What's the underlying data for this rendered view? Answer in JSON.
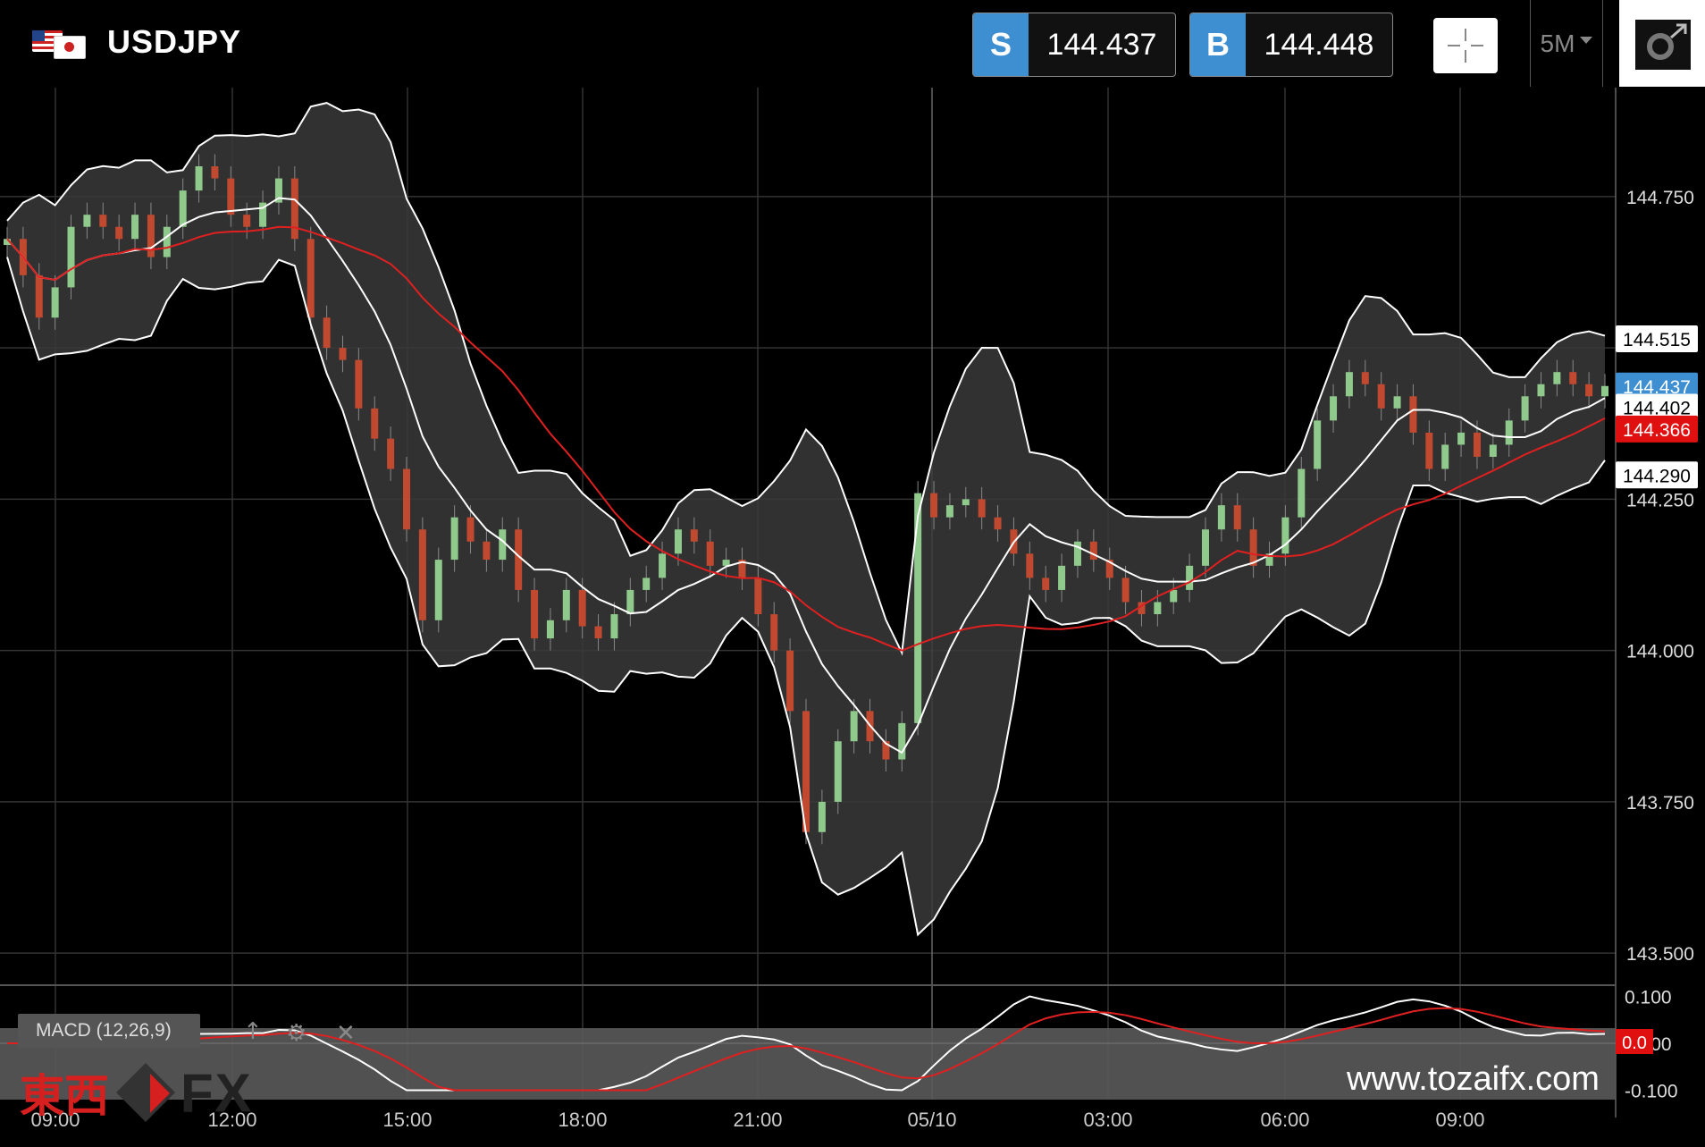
{
  "header": {
    "symbol": "USDJPY",
    "sell": {
      "tag": "S",
      "price": "144.437"
    },
    "buy": {
      "tag": "B",
      "price": "144.448"
    },
    "timeframe": "5M"
  },
  "watermark": {
    "brand_kanji": "東西",
    "brand_fx": "FX",
    "site": "www.tozaifx.com"
  },
  "colors": {
    "background": "#000000",
    "candle_up": "#8fc98c",
    "candle_down": "#c0492f",
    "bollinger": "#ffffff",
    "band_fill": "#3a3a3a",
    "ma": "#e02020",
    "accent": "#3d8fd1"
  },
  "chart_data": {
    "type": "candlestick",
    "interval": "5M",
    "indicators": [
      "Bollinger Bands",
      "Moving Average"
    ],
    "ylim": [
      143.5,
      144.75
    ],
    "yticks": [
      "144.750",
      "144.250",
      "144.000",
      "143.750",
      "143.500"
    ],
    "xticks": [
      "09:00",
      "12:00",
      "15:00",
      "18:00",
      "21:00",
      "05/10",
      "03:00",
      "06:00",
      "09:00"
    ],
    "price_labels": [
      {
        "label": "144.515",
        "value": 144.515,
        "style": "white"
      },
      {
        "label": "144.437",
        "value": 144.437,
        "style": "blue"
      },
      {
        "label": "144.402",
        "value": 144.402,
        "style": "white"
      },
      {
        "label": "144.366",
        "value": 144.366,
        "style": "red"
      },
      {
        "label": "144.290",
        "value": 144.29,
        "style": "white"
      }
    ],
    "series": [
      {
        "name": "close",
        "x": [
          0,
          1,
          2,
          3,
          4,
          5,
          6,
          7,
          8,
          9,
          10,
          11,
          12,
          13,
          14,
          15,
          16,
          17,
          18,
          19,
          20,
          21,
          22,
          23,
          24,
          25,
          26,
          27,
          28,
          29,
          30,
          31,
          32,
          33,
          34,
          35,
          36,
          37,
          38,
          39,
          40,
          41,
          42,
          43,
          44,
          45,
          46,
          47,
          48,
          49,
          50,
          51,
          52,
          53,
          54,
          55,
          56,
          57,
          58,
          59,
          60,
          61,
          62,
          63,
          64,
          65,
          66,
          67,
          68,
          69,
          70,
          71,
          72,
          73,
          74,
          75,
          76,
          77,
          78,
          79,
          80,
          81,
          82,
          83,
          84,
          85,
          86,
          87,
          88,
          89,
          90,
          91,
          92,
          93,
          94,
          95,
          96,
          97,
          98,
          99,
          100
        ],
        "values": [
          144.68,
          144.62,
          144.55,
          144.6,
          144.7,
          144.72,
          144.7,
          144.68,
          144.72,
          144.65,
          144.7,
          144.76,
          144.8,
          144.78,
          144.72,
          144.7,
          144.74,
          144.78,
          144.68,
          144.55,
          144.5,
          144.48,
          144.4,
          144.35,
          144.3,
          144.2,
          144.05,
          144.15,
          144.22,
          144.18,
          144.15,
          144.2,
          144.1,
          144.02,
          144.05,
          144.1,
          144.04,
          144.02,
          144.06,
          144.1,
          144.12,
          144.16,
          144.2,
          144.18,
          144.14,
          144.15,
          144.12,
          144.06,
          144.0,
          143.9,
          143.7,
          143.75,
          143.85,
          143.9,
          143.85,
          143.82,
          143.88,
          144.26,
          144.22,
          144.24,
          144.25,
          144.22,
          144.2,
          144.16,
          144.12,
          144.1,
          144.14,
          144.18,
          144.15,
          144.12,
          144.08,
          144.06,
          144.08,
          144.1,
          144.14,
          144.2,
          144.24,
          144.2,
          144.14,
          144.16,
          144.22,
          144.3,
          144.38,
          144.42,
          144.46,
          144.44,
          144.4,
          144.42,
          144.36,
          144.3,
          144.34,
          144.36,
          144.32,
          144.34,
          144.38,
          144.42,
          144.44,
          144.46,
          144.44,
          144.42,
          144.437
        ]
      }
    ],
    "macd": {
      "label": "MACD (12,26,9)",
      "ylim": [
        -0.1,
        0.1
      ],
      "yticks": [
        "0.100",
        "0.000",
        "-0.100"
      ],
      "signal_label": "0.0"
    }
  }
}
